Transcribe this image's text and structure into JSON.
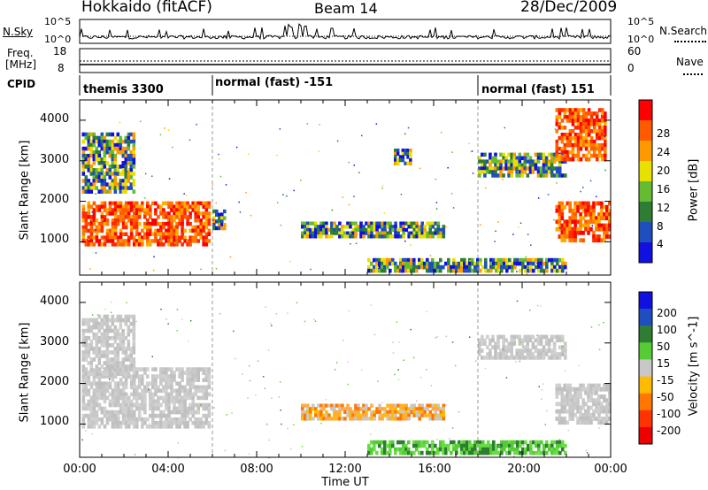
{
  "header": {
    "station": "Hokkaido (fitACF)",
    "beam": "Beam 14",
    "date": "28/Dec/2009"
  },
  "status_panels": {
    "nsky_label": "N.Sky",
    "nsearch_label": "N.Search",
    "freq_label_line1": "Freq.",
    "freq_label_line2": "[MHz]",
    "nave_label": "Nave",
    "cpid_label": "CPID",
    "noise_ticks_left": [
      "10^5",
      "10^0"
    ],
    "noise_ticks_right": [
      "10^5",
      "10^0"
    ],
    "freq_ticks_left": [
      "18",
      "8"
    ],
    "freq_ticks_right": [
      "60",
      "0"
    ],
    "cpid_segments": [
      {
        "label": "themis 3300",
        "start": 0.0,
        "end": 6.0
      },
      {
        "label": "normal (fast) -151",
        "start": 6.0,
        "end": 18.0
      },
      {
        "label": "normal (fast) 151",
        "start": 18.0,
        "end": 24.0
      }
    ]
  },
  "time_axis": {
    "label": "Time UT",
    "ticks": [
      "00:00",
      "04:00",
      "08:00",
      "12:00",
      "16:00",
      "20:00",
      "00:00"
    ]
  },
  "chart_data": [
    {
      "type": "heatmap",
      "panel": "power",
      "ylabel": "Slant Range [km]",
      "yticks": [
        "1000",
        "2000",
        "3000",
        "4000"
      ],
      "ylim": [
        180,
        4500
      ],
      "xlim": [
        0,
        24
      ],
      "colorbar": {
        "label": "Power [dB]",
        "ticks": [
          "4",
          "8",
          "12",
          "16",
          "20",
          "24",
          "28"
        ],
        "colors": [
          "#1010e0",
          "#1f4fbf",
          "#2e7d32",
          "#66bb33",
          "#e8e000",
          "#ff9900",
          "#ff5a00",
          "#ff0000"
        ]
      },
      "echo_regions": [
        {
          "t0": 0.1,
          "t1": 5.9,
          "r0": 900,
          "r1": 2000,
          "level": "strong"
        },
        {
          "t0": 0.1,
          "t1": 2.5,
          "r0": 2200,
          "r1": 3700,
          "level": "moderate"
        },
        {
          "t0": 6.0,
          "t1": 6.6,
          "r0": 1300,
          "r1": 1800,
          "level": "moderate"
        },
        {
          "t0": 10.0,
          "t1": 16.5,
          "r0": 1100,
          "r1": 1500,
          "level": "moderate"
        },
        {
          "t0": 13.0,
          "t1": 22.0,
          "r0": 250,
          "r1": 600,
          "level": "moderate"
        },
        {
          "t0": 14.2,
          "t1": 15.0,
          "r0": 2900,
          "r1": 3300,
          "level": "moderate"
        },
        {
          "t0": 18.0,
          "t1": 22.0,
          "r0": 2600,
          "r1": 3200,
          "level": "moderate"
        },
        {
          "t0": 21.5,
          "t1": 24.0,
          "r0": 1000,
          "r1": 2000,
          "level": "strong"
        },
        {
          "t0": 21.5,
          "t1": 23.8,
          "r0": 3000,
          "r1": 4300,
          "level": "strong"
        }
      ]
    },
    {
      "type": "heatmap",
      "panel": "velocity",
      "ylabel": "Slant Range [km]",
      "yticks": [
        "1000",
        "2000",
        "3000",
        "4000"
      ],
      "ylim": [
        180,
        4500
      ],
      "xlim": [
        0,
        24
      ],
      "colorbar": {
        "label": "Velocity [m s^-1]",
        "ticks": [
          "200",
          "100",
          "50",
          "15",
          "-15",
          "-50",
          "-100",
          "-200"
        ],
        "colors": [
          "#1010e0",
          "#1f4fbf",
          "#2e7d32",
          "#55cc33",
          "#c8c8c8",
          "#ffbb00",
          "#ff7700",
          "#ff3300",
          "#ee0000"
        ]
      },
      "echo_regions": [
        {
          "t0": 0.1,
          "t1": 5.9,
          "r0": 900,
          "r1": 2400,
          "level": "ground"
        },
        {
          "t0": 0.1,
          "t1": 2.5,
          "r0": 2200,
          "r1": 3700,
          "level": "ground"
        },
        {
          "t0": 10.0,
          "t1": 16.5,
          "r0": 1100,
          "r1": 1500,
          "level": "negative"
        },
        {
          "t0": 13.0,
          "t1": 22.0,
          "r0": 250,
          "r1": 600,
          "level": "positive"
        },
        {
          "t0": 18.0,
          "t1": 22.0,
          "r0": 2600,
          "r1": 3200,
          "level": "ground"
        },
        {
          "t0": 21.5,
          "t1": 24.0,
          "r0": 1000,
          "r1": 2000,
          "level": "ground"
        }
      ]
    }
  ]
}
